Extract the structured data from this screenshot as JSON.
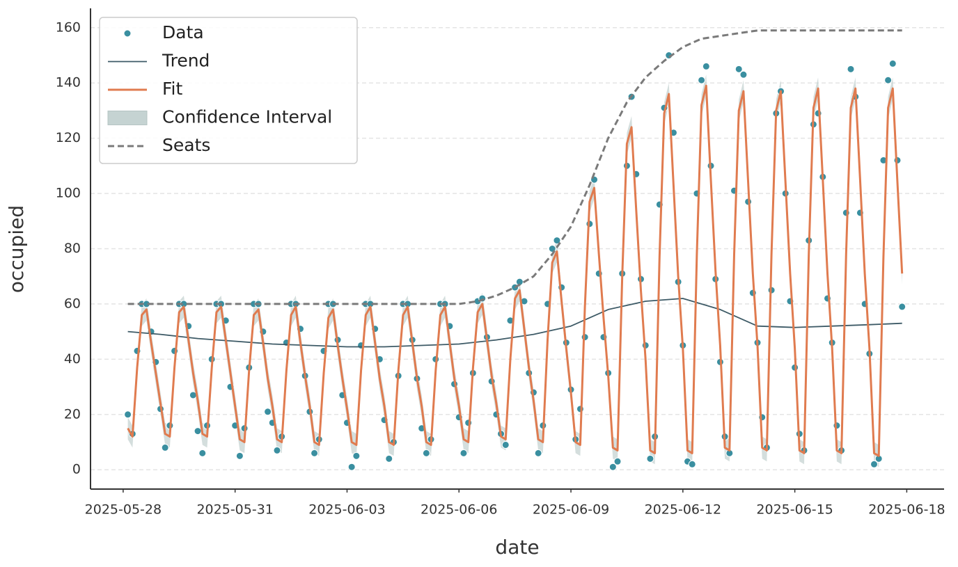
{
  "chart_data": {
    "type": "line",
    "xlabel": "date",
    "ylabel": "occupied",
    "xlim": [
      "2025-05-27 03:00",
      "2025-06-19 00:00"
    ],
    "xticks": [
      "2025-05-28",
      "2025-05-31",
      "2025-06-03",
      "2025-06-06",
      "2025-06-09",
      "2025-06-12",
      "2025-06-15",
      "2025-06-18"
    ],
    "ylim": [
      -7,
      167
    ],
    "yticks": [
      0,
      20,
      40,
      60,
      80,
      100,
      120,
      140,
      160
    ],
    "grid": true,
    "legend": "upper left",
    "x": [
      "2025-05-28 03:00",
      "2025-05-28 06:00",
      "2025-05-28 09:00",
      "2025-05-28 12:00",
      "2025-05-28 15:00",
      "2025-05-28 18:00",
      "2025-05-28 21:00",
      "2025-05-29 00:00",
      "2025-05-29 03:00",
      "2025-05-29 06:00",
      "2025-05-29 09:00",
      "2025-05-29 12:00",
      "2025-05-29 15:00",
      "2025-05-29 18:00",
      "2025-05-29 21:00",
      "2025-05-30 00:00",
      "2025-05-30 03:00",
      "2025-05-30 06:00",
      "2025-05-30 09:00",
      "2025-05-30 12:00",
      "2025-05-30 15:00",
      "2025-05-30 18:00",
      "2025-05-30 21:00",
      "2025-05-31 00:00",
      "2025-05-31 03:00",
      "2025-05-31 06:00",
      "2025-05-31 09:00",
      "2025-05-31 12:00",
      "2025-05-31 15:00",
      "2025-05-31 18:00",
      "2025-05-31 21:00",
      "2025-06-01 00:00",
      "2025-06-01 03:00",
      "2025-06-01 06:00",
      "2025-06-01 09:00",
      "2025-06-01 12:00",
      "2025-06-01 15:00",
      "2025-06-01 18:00",
      "2025-06-01 21:00",
      "2025-06-02 00:00",
      "2025-06-02 03:00",
      "2025-06-02 06:00",
      "2025-06-02 09:00",
      "2025-06-02 12:00",
      "2025-06-02 15:00",
      "2025-06-02 18:00",
      "2025-06-02 21:00",
      "2025-06-03 00:00",
      "2025-06-03 03:00",
      "2025-06-03 06:00",
      "2025-06-03 09:00",
      "2025-06-03 12:00",
      "2025-06-03 15:00",
      "2025-06-03 18:00",
      "2025-06-03 21:00",
      "2025-06-04 00:00",
      "2025-06-04 03:00",
      "2025-06-04 06:00",
      "2025-06-04 09:00",
      "2025-06-04 12:00",
      "2025-06-04 15:00",
      "2025-06-04 18:00",
      "2025-06-04 21:00",
      "2025-06-05 00:00",
      "2025-06-05 03:00",
      "2025-06-05 06:00",
      "2025-06-05 09:00",
      "2025-06-05 12:00",
      "2025-06-05 15:00",
      "2025-06-05 18:00",
      "2025-06-05 21:00",
      "2025-06-06 00:00",
      "2025-06-06 03:00",
      "2025-06-06 06:00",
      "2025-06-06 09:00",
      "2025-06-06 12:00",
      "2025-06-06 15:00",
      "2025-06-06 18:00",
      "2025-06-06 21:00",
      "2025-06-07 00:00",
      "2025-06-07 03:00",
      "2025-06-07 06:00",
      "2025-06-07 09:00",
      "2025-06-07 12:00",
      "2025-06-07 15:00",
      "2025-06-07 18:00",
      "2025-06-07 21:00",
      "2025-06-08 00:00",
      "2025-06-08 03:00",
      "2025-06-08 06:00",
      "2025-06-08 09:00",
      "2025-06-08 12:00",
      "2025-06-08 15:00",
      "2025-06-08 18:00",
      "2025-06-08 21:00",
      "2025-06-09 00:00",
      "2025-06-09 03:00",
      "2025-06-09 06:00",
      "2025-06-09 09:00",
      "2025-06-09 12:00",
      "2025-06-09 15:00",
      "2025-06-09 18:00",
      "2025-06-09 21:00",
      "2025-06-10 00:00",
      "2025-06-10 03:00",
      "2025-06-10 06:00",
      "2025-06-10 09:00",
      "2025-06-10 12:00",
      "2025-06-10 15:00",
      "2025-06-10 18:00",
      "2025-06-10 21:00",
      "2025-06-11 00:00",
      "2025-06-11 03:00",
      "2025-06-11 06:00",
      "2025-06-11 09:00",
      "2025-06-11 12:00",
      "2025-06-11 15:00",
      "2025-06-11 18:00",
      "2025-06-11 21:00",
      "2025-06-12 00:00",
      "2025-06-12 03:00",
      "2025-06-12 06:00",
      "2025-06-12 09:00",
      "2025-06-12 12:00",
      "2025-06-12 15:00",
      "2025-06-12 18:00",
      "2025-06-12 21:00",
      "2025-06-13 00:00",
      "2025-06-13 03:00",
      "2025-06-13 06:00",
      "2025-06-13 09:00",
      "2025-06-13 12:00",
      "2025-06-13 15:00",
      "2025-06-13 18:00",
      "2025-06-13 21:00",
      "2025-06-14 00:00",
      "2025-06-14 03:00",
      "2025-06-14 06:00",
      "2025-06-14 09:00",
      "2025-06-14 12:00",
      "2025-06-14 15:00",
      "2025-06-14 18:00",
      "2025-06-14 21:00",
      "2025-06-15 00:00",
      "2025-06-15 03:00",
      "2025-06-15 06:00",
      "2025-06-15 09:00",
      "2025-06-15 12:00",
      "2025-06-15 15:00",
      "2025-06-15 18:00",
      "2025-06-15 21:00",
      "2025-06-16 00:00",
      "2025-06-16 03:00",
      "2025-06-16 06:00",
      "2025-06-16 09:00",
      "2025-06-16 12:00",
      "2025-06-16 15:00",
      "2025-06-16 18:00",
      "2025-06-16 21:00",
      "2025-06-17 00:00",
      "2025-06-17 03:00",
      "2025-06-17 06:00",
      "2025-06-17 09:00",
      "2025-06-17 12:00",
      "2025-06-17 15:00",
      "2025-06-17 18:00",
      "2025-06-17 21:00"
    ],
    "series": [
      {
        "name": "Data",
        "style": "scatter",
        "color": "#3a8fa0",
        "values": [
          20,
          13,
          43,
          60,
          60,
          50,
          39,
          22,
          8,
          16,
          43,
          60,
          60,
          52,
          27,
          14,
          6,
          16,
          40,
          60,
          60,
          54,
          30,
          16,
          5,
          15,
          37,
          60,
          60,
          50,
          21,
          17,
          7,
          12,
          46,
          60,
          60,
          51,
          34,
          21,
          6,
          11,
          43,
          60,
          60,
          47,
          27,
          17,
          1,
          5,
          45,
          60,
          60,
          51,
          40,
          18,
          4,
          10,
          34,
          60,
          60,
          47,
          33,
          15,
          6,
          11,
          40,
          60,
          60,
          52,
          31,
          19,
          6,
          17,
          35,
          61,
          62,
          48,
          32,
          20,
          13,
          9,
          54,
          66,
          68,
          61,
          35,
          28,
          6,
          16,
          60,
          80,
          83,
          66,
          46,
          29,
          11,
          22,
          48,
          89,
          105,
          71,
          48,
          35,
          1,
          3,
          71,
          110,
          135,
          107,
          69,
          45,
          4,
          12,
          96,
          131,
          150,
          122,
          68,
          45,
          3,
          2,
          100,
          141,
          146,
          110,
          69,
          39,
          12,
          6,
          101,
          145,
          143,
          97,
          64,
          46,
          19,
          8,
          65,
          129,
          137,
          100,
          61,
          37,
          13,
          7,
          83,
          125,
          129,
          106,
          62,
          46,
          16,
          7,
          93,
          145,
          135,
          93,
          60,
          42,
          2,
          4,
          112,
          141,
          147,
          112,
          59
        ]
      },
      {
        "name": "Trend",
        "style": "line",
        "color": "#3d5a66",
        "x": [
          "2025-05-28 03:00",
          "2025-05-29 00:00",
          "2025-05-30 00:00",
          "2025-05-31 00:00",
          "2025-06-01 00:00",
          "2025-06-02 00:00",
          "2025-06-03 00:00",
          "2025-06-04 00:00",
          "2025-06-05 00:00",
          "2025-06-06 00:00",
          "2025-06-07 00:00",
          "2025-06-08 00:00",
          "2025-06-09 00:00",
          "2025-06-10 00:00",
          "2025-06-11 00:00",
          "2025-06-12 00:00",
          "2025-06-13 00:00",
          "2025-06-14 00:00",
          "2025-06-15 00:00",
          "2025-06-16 00:00",
          "2025-06-17 00:00",
          "2025-06-17 21:00"
        ],
        "values": [
          50,
          49,
          47.5,
          46.5,
          45.5,
          45,
          44.5,
          44.5,
          45,
          45.5,
          47,
          49,
          52,
          58,
          61,
          62,
          58,
          52,
          51.5,
          52,
          52.5,
          53
        ]
      },
      {
        "name": "Fit",
        "style": "line",
        "color": "#e07b4f",
        "values": [
          15,
          12,
          37,
          56,
          58,
          46,
          35,
          24,
          13,
          12,
          37,
          57,
          59,
          47,
          35,
          25,
          13,
          12,
          37,
          57,
          59,
          47,
          35,
          23,
          11,
          10,
          36,
          56,
          58,
          46,
          33,
          23,
          11,
          10,
          36,
          56,
          59,
          46,
          34,
          23,
          10,
          9,
          35,
          55,
          58,
          45,
          33,
          22,
          10,
          9,
          36,
          56,
          59,
          46,
          33,
          23,
          10,
          9,
          36,
          56,
          59,
          46,
          33,
          23,
          10,
          9,
          36,
          56,
          59,
          46,
          33,
          23,
          11,
          10,
          37,
          57,
          60,
          47,
          34,
          24,
          12,
          11,
          40,
          62,
          65,
          51,
          37,
          25,
          11,
          10,
          47,
          75,
          79,
          61,
          44,
          28,
          10,
          9,
          59,
          97,
          102,
          78,
          55,
          34,
          8,
          7,
          70,
          118,
          124,
          94,
          65,
          40,
          7,
          6,
          77,
          129,
          136,
          103,
          70,
          44,
          7,
          6,
          78,
          132,
          139,
          105,
          72,
          45,
          8,
          7,
          78,
          130,
          137,
          104,
          71,
          45,
          8,
          7,
          78,
          130,
          137,
          104,
          71,
          44,
          7,
          6,
          78,
          131,
          138,
          105,
          71,
          44,
          7,
          6,
          78,
          131,
          138,
          105,
          71,
          44,
          6,
          5,
          77,
          131,
          138,
          104,
          71
        ]
      },
      {
        "name": "Confidence Interval",
        "style": "band",
        "color": "#c5d3d2",
        "lower": [
          11,
          8,
          33,
          52,
          54,
          42,
          31,
          20,
          9,
          8,
          33,
          53,
          55,
          43,
          31,
          21,
          9,
          8,
          33,
          53,
          55,
          43,
          31,
          19,
          7,
          6,
          32,
          52,
          54,
          42,
          29,
          19,
          7,
          6,
          32,
          52,
          55,
          42,
          30,
          19,
          6,
          5,
          31,
          51,
          54,
          41,
          29,
          18,
          6,
          5,
          32,
          52,
          55,
          42,
          29,
          19,
          6,
          5,
          32,
          52,
          55,
          42,
          29,
          19,
          6,
          5,
          32,
          52,
          55,
          42,
          29,
          19,
          7,
          6,
          33,
          53,
          56,
          43,
          30,
          20,
          8,
          7,
          36,
          58,
          61,
          47,
          33,
          21,
          7,
          6,
          43,
          71,
          75,
          57,
          40,
          24,
          6,
          5,
          55,
          93,
          98,
          74,
          51,
          30,
          4,
          3,
          66,
          114,
          120,
          90,
          61,
          36,
          3,
          2,
          73,
          125,
          132,
          99,
          66,
          40,
          3,
          2,
          74,
          128,
          135,
          101,
          68,
          41,
          4,
          3,
          74,
          126,
          133,
          100,
          67,
          41,
          4,
          3,
          74,
          126,
          133,
          100,
          67,
          40,
          3,
          2,
          74,
          127,
          134,
          101,
          67,
          40,
          3,
          2,
          74,
          127,
          134,
          101,
          67,
          40,
          2,
          1,
          73,
          127,
          134,
          100,
          67
        ],
        "upper": [
          19,
          16,
          41,
          60,
          62,
          50,
          39,
          28,
          17,
          16,
          41,
          61,
          63,
          51,
          39,
          29,
          17,
          16,
          41,
          61,
          63,
          51,
          39,
          27,
          15,
          14,
          40,
          60,
          62,
          50,
          37,
          27,
          15,
          14,
          40,
          60,
          63,
          50,
          38,
          27,
          14,
          13,
          39,
          59,
          62,
          49,
          37,
          26,
          14,
          13,
          40,
          60,
          63,
          50,
          37,
          27,
          14,
          13,
          40,
          60,
          63,
          50,
          37,
          27,
          14,
          13,
          40,
          60,
          63,
          50,
          37,
          27,
          15,
          14,
          41,
          61,
          64,
          51,
          38,
          28,
          16,
          15,
          44,
          66,
          69,
          55,
          41,
          29,
          15,
          14,
          51,
          79,
          83,
          65,
          48,
          32,
          14,
          13,
          63,
          101,
          106,
          82,
          59,
          38,
          12,
          11,
          74,
          122,
          128,
          98,
          69,
          44,
          11,
          10,
          81,
          133,
          140,
          107,
          74,
          48,
          11,
          10,
          82,
          136,
          143,
          109,
          76,
          49,
          12,
          11,
          82,
          134,
          141,
          108,
          75,
          49,
          12,
          11,
          82,
          134,
          141,
          108,
          75,
          48,
          11,
          10,
          82,
          135,
          142,
          109,
          75,
          48,
          11,
          10,
          82,
          135,
          142,
          109,
          75,
          48,
          10,
          9,
          81,
          135,
          142,
          108,
          75
        ]
      },
      {
        "name": "Seats",
        "style": "dashed",
        "color": "#7a7a7a",
        "x": [
          "2025-05-28 03:00",
          "2025-06-06 00:00",
          "2025-06-06 12:00",
          "2025-06-07 00:00",
          "2025-06-07 12:00",
          "2025-06-08 00:00",
          "2025-06-08 12:00",
          "2025-06-09 00:00",
          "2025-06-09 12:00",
          "2025-06-10 00:00",
          "2025-06-10 12:00",
          "2025-06-11 00:00",
          "2025-06-11 12:00",
          "2025-06-12 00:00",
          "2025-06-12 12:00",
          "2025-06-13 00:00",
          "2025-06-13 12:00",
          "2025-06-14 00:00",
          "2025-06-17 21:00"
        ],
        "values": [
          60,
          60,
          61,
          63,
          66,
          70,
          78,
          88,
          103,
          120,
          133,
          142,
          148,
          153,
          156,
          157,
          158,
          159,
          159
        ]
      }
    ]
  }
}
